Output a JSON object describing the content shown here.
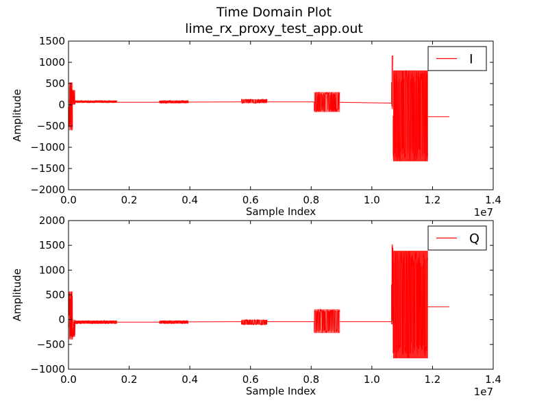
{
  "figure": {
    "title_line1": "Time Domain Plot",
    "title_line2": "lime_rx_proxy_test_app.out"
  },
  "chart_data": [
    {
      "type": "line",
      "title": "",
      "xlabel": "Sample Index",
      "ylabel": "Amplitude",
      "x_offset_label": "1e7",
      "xlim": [
        0,
        1.4
      ],
      "ylim": [
        -2000,
        1500
      ],
      "xticks": [
        "0.0",
        "0.2",
        "0.4",
        "0.6",
        "0.8",
        "1.0",
        "1.2",
        "1.4"
      ],
      "yticks": [
        "1500",
        "1000",
        "500",
        "0",
        "−500",
        "−1000",
        "−1500",
        "−2000"
      ],
      "legend": {
        "placement": "top-right",
        "entries": [
          "I"
        ]
      },
      "grid": false,
      "series": [
        {
          "name": "I",
          "color": "#ff0000",
          "segments": [
            {
              "kind": "burst",
              "x": [
                0.0,
                0.002
              ],
              "range": [
                50,
                120
              ]
            },
            {
              "kind": "burst",
              "x": [
                0.002,
                0.014
              ],
              "range": [
                -600,
                530
              ]
            },
            {
              "kind": "burst",
              "x": [
                0.014,
                0.022
              ],
              "range": [
                0,
                350
              ]
            },
            {
              "kind": "burst",
              "x": [
                0.022,
                0.16
              ],
              "range": [
                50,
                100
              ]
            },
            {
              "kind": "line",
              "x": [
                0.16,
                0.3
              ],
              "y": [
                60,
                60
              ]
            },
            {
              "kind": "burst",
              "x": [
                0.3,
                0.395
              ],
              "range": [
                40,
                100
              ]
            },
            {
              "kind": "line",
              "x": [
                0.395,
                0.57
              ],
              "y": [
                65,
                70
              ]
            },
            {
              "kind": "burst",
              "x": [
                0.57,
                0.655
              ],
              "range": [
                40,
                130
              ]
            },
            {
              "kind": "line",
              "x": [
                0.655,
                0.81
              ],
              "y": [
                70,
                70
              ]
            },
            {
              "kind": "burst",
              "x": [
                0.81,
                0.895
              ],
              "range": [
                -170,
                300
              ]
            },
            {
              "kind": "line",
              "x": [
                0.895,
                1.065
              ],
              "y": [
                60,
                40
              ]
            },
            {
              "kind": "burst",
              "x": [
                1.065,
                1.07
              ],
              "range": [
                -100,
                1160
              ]
            },
            {
              "kind": "burst",
              "x": [
                1.07,
                1.185
              ],
              "range": [
                -1330,
                810
              ]
            },
            {
              "kind": "line",
              "x": [
                1.185,
                1.255
              ],
              "y": [
                -280,
                -280
              ]
            }
          ]
        }
      ]
    },
    {
      "type": "line",
      "title": "",
      "xlabel": "Sample Index",
      "ylabel": "Amplitude",
      "x_offset_label": "1e7",
      "xlim": [
        0,
        1.4
      ],
      "ylim": [
        -1000,
        2000
      ],
      "xticks": [
        "0.0",
        "0.2",
        "0.4",
        "0.6",
        "0.8",
        "1.0",
        "1.2",
        "1.4"
      ],
      "yticks": [
        "2000",
        "1500",
        "1000",
        "500",
        "0",
        "−500",
        "−1000"
      ],
      "legend": {
        "placement": "top-right",
        "entries": [
          "Q"
        ]
      },
      "grid": false,
      "series": [
        {
          "name": "Q",
          "color": "#ff0000",
          "segments": [
            {
              "kind": "burst",
              "x": [
                0.0,
                0.002
              ],
              "range": [
                -160,
                -40
              ]
            },
            {
              "kind": "burst",
              "x": [
                0.002,
                0.014
              ],
              "range": [
                -400,
                570
              ]
            },
            {
              "kind": "burst",
              "x": [
                0.014,
                0.022
              ],
              "range": [
                -350,
                0
              ]
            },
            {
              "kind": "burst",
              "x": [
                0.022,
                0.16
              ],
              "range": [
                -80,
                -20
              ]
            },
            {
              "kind": "line",
              "x": [
                0.16,
                0.3
              ],
              "y": [
                -50,
                -50
              ]
            },
            {
              "kind": "burst",
              "x": [
                0.3,
                0.395
              ],
              "range": [
                -80,
                -20
              ]
            },
            {
              "kind": "line",
              "x": [
                0.395,
                0.57
              ],
              "y": [
                -45,
                -40
              ]
            },
            {
              "kind": "burst",
              "x": [
                0.57,
                0.655
              ],
              "range": [
                -100,
                0
              ]
            },
            {
              "kind": "line",
              "x": [
                0.655,
                0.81
              ],
              "y": [
                -40,
                -40
              ]
            },
            {
              "kind": "burst",
              "x": [
                0.81,
                0.895
              ],
              "range": [
                -270,
                210
              ]
            },
            {
              "kind": "line",
              "x": [
                0.895,
                1.065
              ],
              "y": [
                -40,
                -40
              ]
            },
            {
              "kind": "burst",
              "x": [
                1.065,
                1.07
              ],
              "range": [
                -100,
                1520
              ]
            },
            {
              "kind": "burst",
              "x": [
                1.07,
                1.185
              ],
              "range": [
                -780,
                1390
              ]
            },
            {
              "kind": "line",
              "x": [
                1.185,
                1.255
              ],
              "y": [
                260,
                260
              ]
            }
          ]
        }
      ]
    }
  ]
}
